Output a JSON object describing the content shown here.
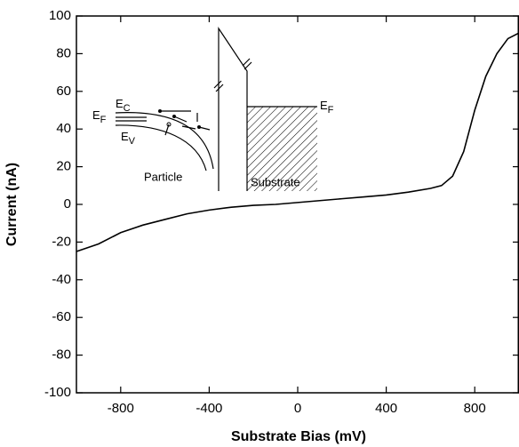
{
  "chart_data": {
    "type": "line",
    "xlabel": "Substrate Bias (mV)",
    "ylabel": "Current (nA)",
    "x": [
      -1000,
      -900,
      -800,
      -700,
      -600,
      -500,
      -400,
      -300,
      -200,
      -100,
      0,
      100,
      200,
      300,
      400,
      500,
      600,
      650,
      700,
      750,
      800,
      850,
      900,
      950,
      1000
    ],
    "series": [
      {
        "color": "#000000",
        "values": [
          -25,
          -21,
          -15,
          -11,
          -8,
          -5,
          -3,
          -1.5,
          -0.5,
          0,
          1,
          2,
          3,
          4,
          5,
          6.5,
          8.5,
          10,
          15,
          28,
          50,
          68,
          80,
          88,
          91
        ]
      }
    ],
    "xlim": [
      -1000,
      1000
    ],
    "ylim": [
      -100,
      100
    ],
    "xticks": [
      -800,
      -400,
      0,
      400,
      800
    ],
    "yticks": [
      -100,
      -80,
      -60,
      -40,
      -20,
      0,
      20,
      40,
      60,
      80,
      100
    ],
    "annotations": [
      {
        "text": "E",
        "sub": "C"
      },
      {
        "text": "E",
        "sub": "F"
      },
      {
        "text": "E",
        "sub": "V"
      },
      {
        "text": "Particle"
      },
      {
        "text": "Substrate"
      },
      {
        "text": "E",
        "sub": "F"
      }
    ]
  }
}
